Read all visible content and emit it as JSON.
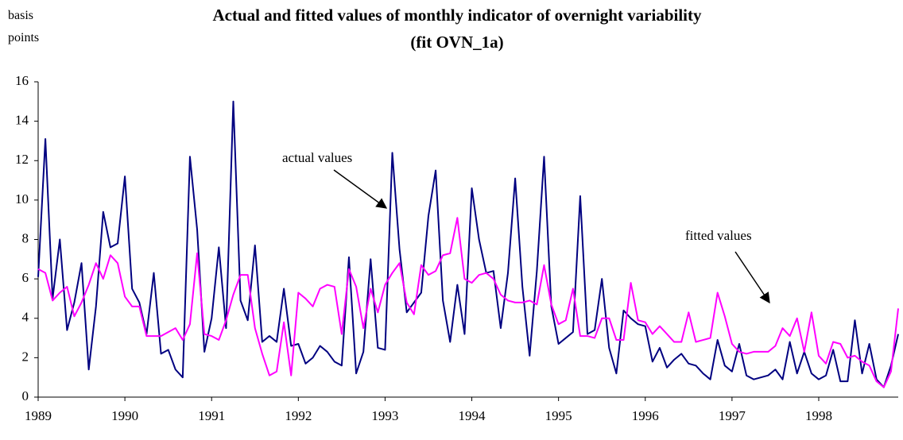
{
  "chart_data": {
    "type": "line",
    "title": "Actual and fitted values of monthly indicator of overnight variability",
    "subtitle": "(fit OVN_1a)",
    "y_label": "basis points",
    "annotations": [
      "actual values",
      "fitted values"
    ],
    "categories": [
      "1989",
      null,
      null,
      null,
      null,
      null,
      null,
      null,
      null,
      null,
      null,
      null,
      "1990",
      null,
      null,
      null,
      null,
      null,
      null,
      null,
      null,
      null,
      null,
      null,
      "1991",
      null,
      null,
      null,
      null,
      null,
      null,
      null,
      null,
      null,
      null,
      null,
      "1992",
      null,
      null,
      null,
      null,
      null,
      null,
      null,
      null,
      null,
      null,
      null,
      "1993",
      null,
      null,
      null,
      null,
      null,
      null,
      null,
      null,
      null,
      null,
      null,
      "1994",
      null,
      null,
      null,
      null,
      null,
      null,
      null,
      null,
      null,
      null,
      null,
      "1995",
      null,
      null,
      null,
      null,
      null,
      null,
      null,
      null,
      null,
      null,
      null,
      "1996",
      null,
      null,
      null,
      null,
      null,
      null,
      null,
      null,
      null,
      null,
      null,
      "1997",
      null,
      null,
      null,
      null,
      null,
      null,
      null,
      null,
      null,
      null,
      null,
      "1998",
      null,
      null,
      null,
      null,
      null,
      null,
      null,
      null,
      null,
      null,
      null
    ],
    "series": [
      {
        "name": "actual values",
        "color": "#000080",
        "values": [
          6.1,
          13.1,
          5.0,
          8.0,
          3.4,
          4.8,
          6.8,
          1.4,
          4.6,
          9.4,
          7.6,
          7.8,
          11.2,
          5.5,
          4.8,
          3.2,
          6.3,
          2.2,
          2.4,
          1.4,
          1.0,
          12.2,
          8.5,
          2.3,
          4.0,
          7.6,
          3.5,
          15.0,
          4.9,
          3.9,
          7.7,
          2.8,
          3.1,
          2.8,
          5.5,
          2.6,
          2.7,
          1.7,
          2.0,
          2.6,
          2.3,
          1.8,
          1.6,
          7.1,
          1.2,
          2.3,
          7.0,
          2.5,
          2.4,
          12.4,
          7.5,
          4.3,
          4.8,
          5.3,
          9.2,
          11.5,
          4.9,
          2.8,
          5.7,
          3.2,
          10.6,
          8.0,
          6.3,
          6.4,
          3.5,
          6.3,
          11.1,
          5.6,
          2.1,
          6.4,
          12.2,
          4.6,
          2.7,
          3.0,
          3.3,
          10.2,
          3.2,
          3.4,
          6.0,
          2.5,
          1.2,
          4.4,
          4.0,
          3.7,
          3.6,
          1.8,
          2.5,
          1.5,
          1.9,
          2.2,
          1.7,
          1.6,
          1.2,
          0.9,
          2.9,
          1.6,
          1.3,
          2.7,
          1.1,
          0.9,
          1.0,
          1.1,
          1.4,
          0.9,
          2.8,
          1.2,
          2.3,
          1.2,
          0.9,
          1.1,
          2.4,
          0.8,
          0.8,
          3.9,
          1.2,
          2.7,
          0.9,
          0.5,
          1.6,
          3.2
        ]
      },
      {
        "name": "fitted values",
        "color": "#ff00ff",
        "values": [
          6.5,
          6.3,
          4.9,
          5.3,
          5.6,
          4.1,
          4.8,
          5.7,
          6.8,
          6.0,
          7.2,
          6.8,
          5.1,
          4.6,
          4.6,
          3.1,
          3.1,
          3.1,
          3.3,
          3.5,
          2.9,
          3.7,
          7.3,
          3.2,
          3.1,
          2.9,
          3.9,
          5.2,
          6.2,
          6.2,
          3.5,
          2.2,
          1.1,
          1.3,
          3.8,
          1.1,
          5.3,
          5.0,
          4.6,
          5.5,
          5.7,
          5.6,
          3.2,
          6.5,
          5.6,
          3.5,
          5.5,
          4.3,
          5.7,
          6.3,
          6.8,
          4.8,
          4.2,
          6.7,
          6.2,
          6.4,
          7.2,
          7.3,
          9.1,
          6.0,
          5.8,
          6.2,
          6.3,
          6.0,
          5.2,
          4.9,
          4.8,
          4.8,
          4.9,
          4.7,
          6.7,
          4.7,
          3.7,
          3.9,
          5.5,
          3.1,
          3.1,
          3.0,
          4.0,
          4.0,
          2.9,
          2.9,
          5.8,
          3.9,
          3.8,
          3.2,
          3.6,
          3.2,
          2.8,
          2.8,
          4.3,
          2.8,
          2.9,
          3.0,
          5.3,
          4.1,
          2.7,
          2.3,
          2.2,
          2.3,
          2.3,
          2.3,
          2.6,
          3.5,
          3.1,
          4.0,
          2.3,
          4.3,
          2.1,
          1.7,
          2.8,
          2.7,
          2.0,
          2.1,
          1.8,
          1.6,
          0.8,
          0.5,
          1.3,
          4.5
        ]
      }
    ],
    "ylim": [
      0,
      16
    ],
    "yticks": [
      0,
      2,
      4,
      6,
      8,
      10,
      12,
      14,
      16
    ],
    "grid": false
  }
}
